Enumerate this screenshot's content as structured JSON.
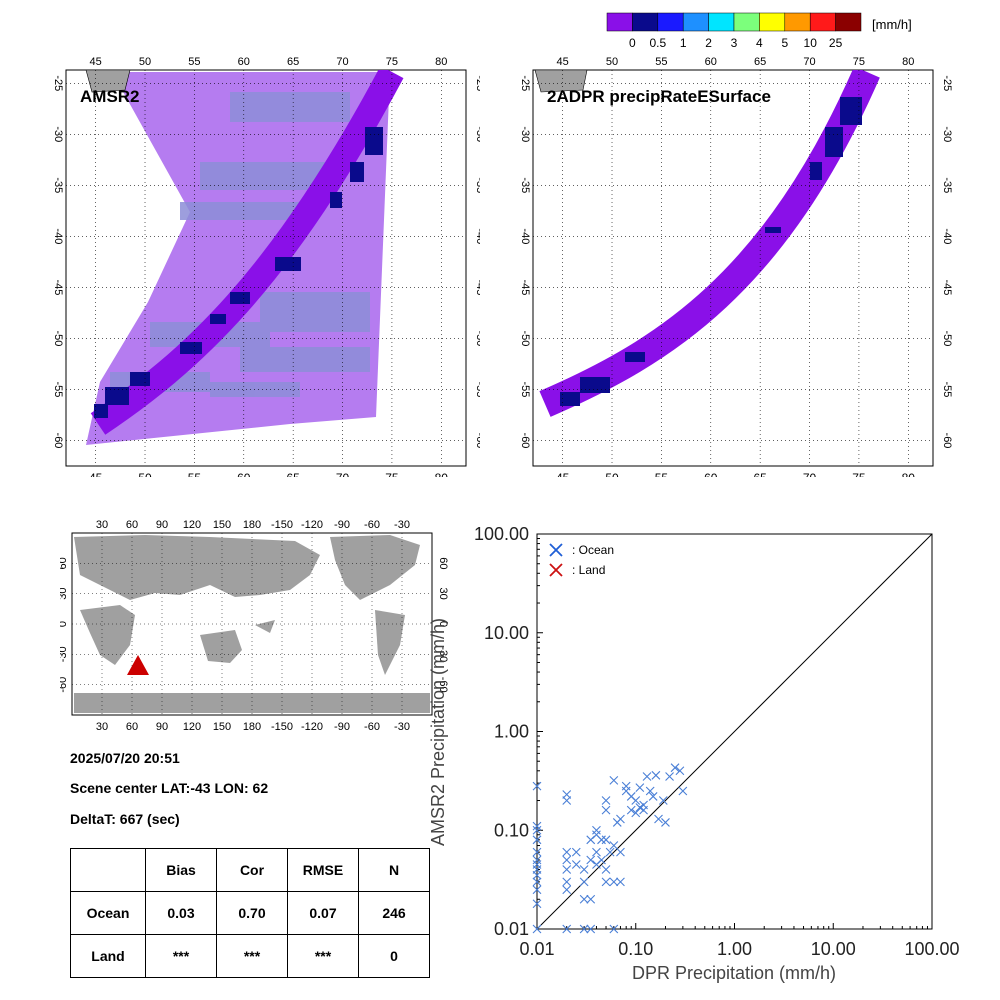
{
  "colorbar": {
    "unit": "[mm/h]",
    "labels": [
      "0",
      "0.5",
      "1",
      "2",
      "3",
      "4",
      "5",
      "10",
      "25"
    ],
    "colors": [
      "#8a10e8",
      "#0a0a8c",
      "#1a1aff",
      "#1e90ff",
      "#00e5ff",
      "#7cff7c",
      "#ffff00",
      "#ff9900",
      "#ff1a1a",
      "#8b0000"
    ]
  },
  "map_left": {
    "title": "AMSR2",
    "lon_ticks": [
      "45",
      "50",
      "55",
      "60",
      "65",
      "70",
      "75",
      "80"
    ],
    "lat_ticks": [
      "-25",
      "-30",
      "-35",
      "-40",
      "-45",
      "-50",
      "-55",
      "-60"
    ]
  },
  "map_right": {
    "title": "2ADPR precipRateESurface",
    "lon_ticks": [
      "45",
      "50",
      "55",
      "60",
      "65",
      "70",
      "75",
      "80"
    ],
    "lat_ticks": [
      "-25",
      "-30",
      "-35",
      "-40",
      "-45",
      "-50",
      "-55",
      "-60"
    ]
  },
  "world_map": {
    "top_lon_ticks": [
      "30",
      "60",
      "90",
      "120",
      "150",
      "180",
      "-150",
      "-120",
      "-90",
      "-60",
      "-30"
    ],
    "bottom_lon_ticks": [
      "30",
      "60",
      "90",
      "120",
      "150",
      "180",
      "-150",
      "-120",
      "-90",
      "-60",
      "-30"
    ],
    "lat_ticks": [
      "60",
      "30",
      "0",
      "-30",
      "-60"
    ],
    "marker_color": "#cc0000"
  },
  "info": {
    "datetime": "2025/07/20 20:51",
    "scene_center": "Scene center LAT:-43   LON:  62",
    "delta_t": "DeltaT:  667 (sec)"
  },
  "stats_table": {
    "headers": [
      "",
      "Bias",
      "Cor",
      "RMSE",
      "N"
    ],
    "rows": [
      [
        "Ocean",
        "0.03",
        "0.70",
        "0.07",
        "246"
      ],
      [
        "Land",
        "***",
        "***",
        "***",
        "0"
      ]
    ]
  },
  "chart_data": {
    "type": "scatter",
    "xlabel": "DPR Precipitation (mm/h)",
    "ylabel": "AMSR2 Precipitation (mm/h)",
    "x_scale": "log",
    "y_scale": "log",
    "xlim": [
      0.01,
      100
    ],
    "ylim": [
      0.01,
      100
    ],
    "tick_labels": [
      "0.01",
      "0.10",
      "1.00",
      "10.00",
      "100.00"
    ],
    "reference_line": "1:1",
    "legend": [
      {
        "label": ": Ocean",
        "color": "#1f5fd6"
      },
      {
        "label": ": Land",
        "color": "#cc1111"
      }
    ],
    "legend_position": "top-left",
    "series": [
      {
        "name": "Ocean",
        "color": "#4a7fd6",
        "points": [
          [
            0.01,
            0.28
          ],
          [
            0.01,
            0.11
          ],
          [
            0.01,
            0.1
          ],
          [
            0.01,
            0.08
          ],
          [
            0.01,
            0.06
          ],
          [
            0.01,
            0.05
          ],
          [
            0.01,
            0.045
          ],
          [
            0.01,
            0.04
          ],
          [
            0.01,
            0.035
          ],
          [
            0.01,
            0.03
          ],
          [
            0.01,
            0.025
          ],
          [
            0.01,
            0.018
          ],
          [
            0.01,
            0.01
          ],
          [
            0.02,
            0.23
          ],
          [
            0.02,
            0.2
          ],
          [
            0.02,
            0.06
          ],
          [
            0.02,
            0.05
          ],
          [
            0.02,
            0.04
          ],
          [
            0.02,
            0.03
          ],
          [
            0.02,
            0.025
          ],
          [
            0.02,
            0.01
          ],
          [
            0.025,
            0.06
          ],
          [
            0.025,
            0.045
          ],
          [
            0.03,
            0.04
          ],
          [
            0.03,
            0.03
          ],
          [
            0.03,
            0.02
          ],
          [
            0.03,
            0.01
          ],
          [
            0.035,
            0.08
          ],
          [
            0.035,
            0.05
          ],
          [
            0.035,
            0.02
          ],
          [
            0.035,
            0.01
          ],
          [
            0.04,
            0.1
          ],
          [
            0.04,
            0.09
          ],
          [
            0.04,
            0.06
          ],
          [
            0.04,
            0.045
          ],
          [
            0.045,
            0.08
          ],
          [
            0.045,
            0.05
          ],
          [
            0.05,
            0.2
          ],
          [
            0.05,
            0.16
          ],
          [
            0.05,
            0.08
          ],
          [
            0.05,
            0.04
          ],
          [
            0.05,
            0.03
          ],
          [
            0.055,
            0.06
          ],
          [
            0.06,
            0.32
          ],
          [
            0.06,
            0.07
          ],
          [
            0.06,
            0.03
          ],
          [
            0.06,
            0.01
          ],
          [
            0.065,
            0.12
          ],
          [
            0.07,
            0.13
          ],
          [
            0.07,
            0.06
          ],
          [
            0.07,
            0.03
          ],
          [
            0.08,
            0.28
          ],
          [
            0.08,
            0.25
          ],
          [
            0.09,
            0.22
          ],
          [
            0.09,
            0.16
          ],
          [
            0.1,
            0.2
          ],
          [
            0.1,
            0.15
          ],
          [
            0.11,
            0.17
          ],
          [
            0.11,
            0.27
          ],
          [
            0.12,
            0.18
          ],
          [
            0.12,
            0.16
          ],
          [
            0.13,
            0.35
          ],
          [
            0.14,
            0.25
          ],
          [
            0.15,
            0.22
          ],
          [
            0.16,
            0.36
          ],
          [
            0.17,
            0.13
          ],
          [
            0.19,
            0.2
          ],
          [
            0.2,
            0.12
          ],
          [
            0.22,
            0.35
          ],
          [
            0.25,
            0.43
          ],
          [
            0.28,
            0.4
          ],
          [
            0.3,
            0.25
          ]
        ]
      },
      {
        "name": "Land",
        "color": "#cc1111",
        "points": []
      }
    ]
  }
}
